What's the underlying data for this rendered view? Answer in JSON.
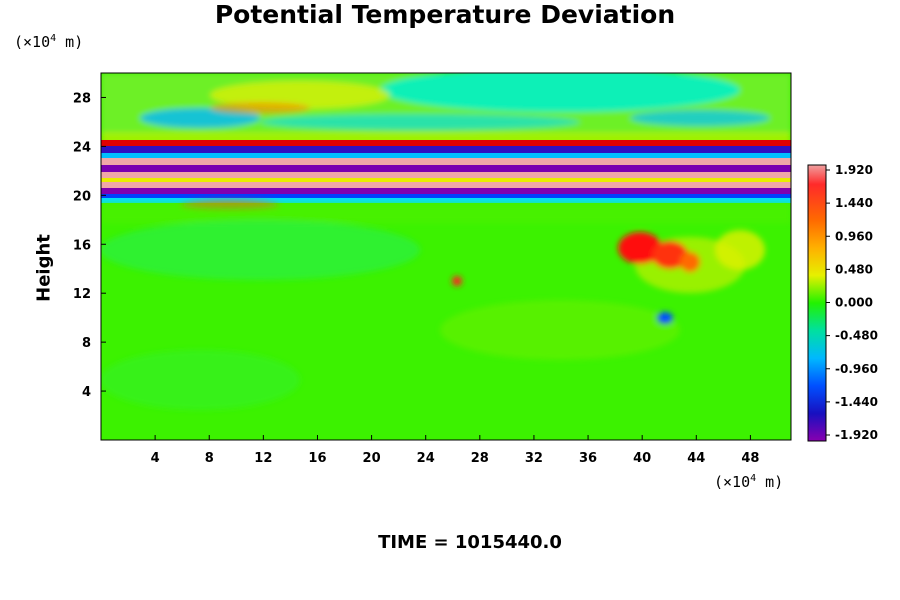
{
  "chart_data": {
    "type": "heatmap",
    "title": "Potential Temperature Deviation",
    "ylabel": "Height",
    "y_unit": {
      "prefix": "(×10",
      "exp": "4",
      "suffix": " m)"
    },
    "x_unit": {
      "prefix": "(×10",
      "exp": "4",
      "suffix": " m)"
    },
    "x_ticks": [
      4,
      8,
      12,
      16,
      20,
      24,
      28,
      32,
      36,
      40,
      44,
      48
    ],
    "y_ticks": [
      4,
      8,
      12,
      16,
      20,
      24,
      28
    ],
    "xlim": [
      0,
      51
    ],
    "ylim": [
      0,
      30
    ],
    "colorbar": {
      "ticks": [
        "1.920",
        "1.440",
        "0.960",
        "0.480",
        "0.000",
        "-0.480",
        "-0.960",
        "-1.440",
        "-1.920"
      ],
      "range": [
        -1.92,
        1.92
      ]
    },
    "footer": "TIME = 1015440.0"
  }
}
